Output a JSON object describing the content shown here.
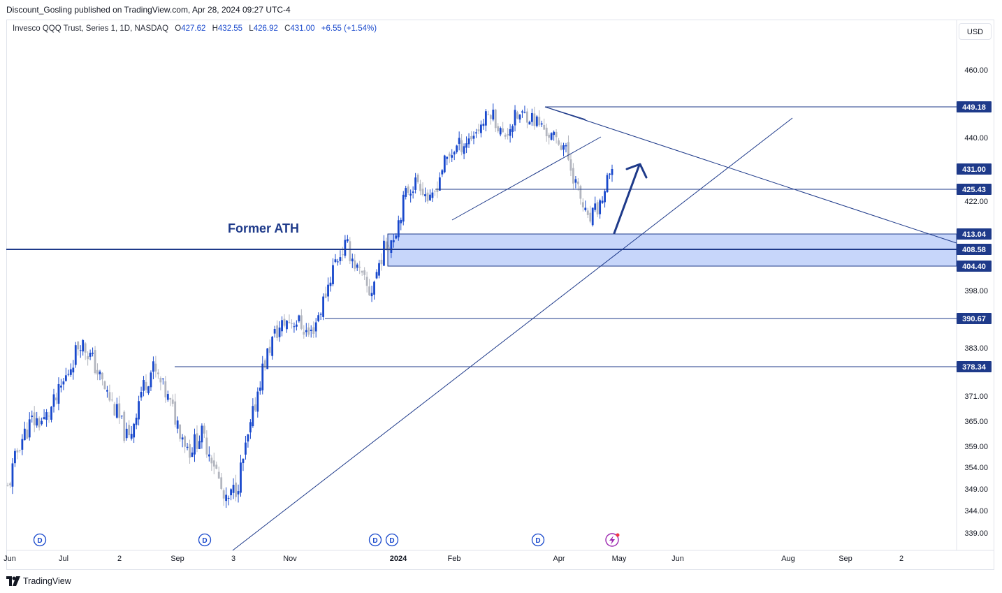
{
  "header": {
    "published_by": "Discount_Gosling published on TradingView.com, Apr 28, 2024 09:27 UTC-4"
  },
  "legend": {
    "symbol": "Invesco QQQ Trust, Series 1, 1D, NASDAQ",
    "open_label": "O",
    "open": "427.62",
    "high_label": "H",
    "high": "432.55",
    "low_label": "L",
    "low": "426.92",
    "close_label": "C",
    "close": "431.00",
    "change": "+6.55 (+1.54%)"
  },
  "currency": "USD",
  "annotation": {
    "former_ath": "Former ATH"
  },
  "footer": {
    "brand": "TradingView"
  },
  "colors": {
    "accent": "#1848cc",
    "line": "#1e3a8a",
    "zone": "#b4c8f8",
    "down": "#b2b5be"
  },
  "chart_data": {
    "type": "candlestick",
    "title": "Invesco QQQ Trust, Series 1, 1D, NASDAQ",
    "y_axis_ticks": [
      "460.00",
      "440.00",
      "422.00",
      "398.00",
      "383.00",
      "371.00",
      "365.00",
      "359.00",
      "354.00",
      "349.00",
      "344.00",
      "339.00"
    ],
    "x_axis_ticks": [
      "Jun",
      "Jul",
      "2",
      "Sep",
      "3",
      "Nov",
      "2024",
      "Feb",
      "Apr",
      "May",
      "Jun",
      "Aug",
      "Sep",
      "2"
    ],
    "price_labels": [
      {
        "value": "449.18",
        "type": "level"
      },
      {
        "value": "431.00",
        "type": "last"
      },
      {
        "value": "425.43",
        "type": "level"
      },
      {
        "value": "413.04",
        "type": "level"
      },
      {
        "value": "408.58",
        "type": "level"
      },
      {
        "value": "404.40",
        "type": "level"
      },
      {
        "value": "390.67",
        "type": "level"
      },
      {
        "value": "378.34",
        "type": "level"
      }
    ],
    "horizontal_levels": [
      449.18,
      425.43,
      408.58,
      390.67,
      378.34
    ],
    "support_zone": [
      404.4,
      413.04
    ],
    "dividend_markers": [
      "D",
      "D",
      "D",
      "D",
      "D"
    ],
    "close_path": [
      [
        "Jun",
        349
      ],
      [
        "Jun",
        360
      ],
      [
        "Jun",
        365
      ],
      [
        "Jul",
        365
      ],
      [
        "Jul",
        370
      ],
      [
        "Jul",
        377
      ],
      [
        "Jul",
        385
      ],
      [
        "2",
        380
      ],
      [
        "2",
        373
      ],
      [
        "2",
        367
      ],
      [
        "Sep",
        360
      ],
      [
        "Sep",
        372
      ],
      [
        "Sep",
        378
      ],
      [
        "3",
        372
      ],
      [
        "3",
        365
      ],
      [
        "3",
        358
      ],
      [
        "3",
        362
      ],
      [
        "Nov",
        356
      ],
      [
        "Nov",
        345
      ],
      [
        "Nov",
        350
      ],
      [
        "Nov",
        362
      ],
      [
        "Nov",
        377
      ],
      [
        "Nov",
        386
      ],
      [
        "Nov",
        390
      ],
      [
        "Nov",
        390
      ],
      [
        "Nov",
        386
      ],
      [
        "Nov",
        394
      ],
      [
        "Nov",
        405
      ],
      [
        "2024",
        410
      ],
      [
        "2024",
        403
      ],
      [
        "2024",
        397
      ],
      [
        "2024",
        408
      ],
      [
        "2024",
        413
      ],
      [
        "2024",
        425
      ],
      [
        "Feb",
        428
      ],
      [
        "Feb",
        421
      ],
      [
        "Feb",
        432
      ],
      [
        "Feb",
        437
      ],
      [
        "Feb",
        439
      ],
      [
        "Feb",
        443
      ],
      [
        "Feb",
        448
      ],
      [
        "Feb",
        440
      ],
      [
        "Apr",
        446
      ],
      [
        "Apr",
        447
      ],
      [
        "Apr",
        444
      ],
      [
        "Apr",
        440
      ],
      [
        "Apr",
        438
      ],
      [
        "Apr",
        427
      ],
      [
        "Apr",
        416
      ],
      [
        "Apr",
        421
      ],
      [
        "May",
        431
      ]
    ]
  }
}
